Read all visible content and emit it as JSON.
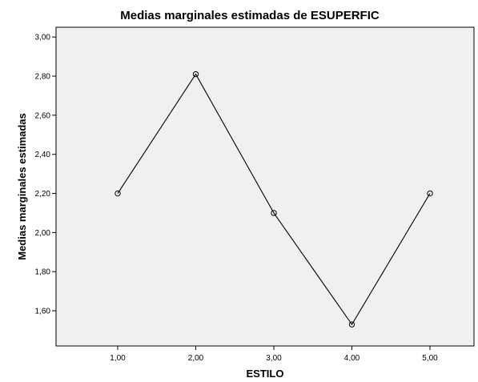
{
  "chart_data": {
    "type": "line",
    "title": "Medias marginales estimadas de ESUPERFIC",
    "xlabel": "ESTILO",
    "ylabel": "Medias marginales estimadas",
    "categories": [
      "1,00",
      "2,00",
      "3,00",
      "4,00",
      "5,00"
    ],
    "x": [
      1,
      2,
      3,
      4,
      5
    ],
    "values": [
      2.2,
      2.81,
      2.1,
      1.53,
      2.2
    ],
    "ylim": [
      1.42,
      3.05
    ],
    "yticks": [
      1.6,
      1.8,
      2.0,
      2.2,
      2.4,
      2.6,
      2.8,
      3.0
    ],
    "ytick_labels": [
      "1,60",
      "1,80",
      "2,00",
      "2,20",
      "2,40",
      "2,60",
      "2,80",
      "3,00"
    ],
    "grid": false,
    "legend": "none",
    "colors": {
      "plot_background": "#f0f0f0",
      "line": "#000000",
      "marker": "#000000"
    }
  }
}
